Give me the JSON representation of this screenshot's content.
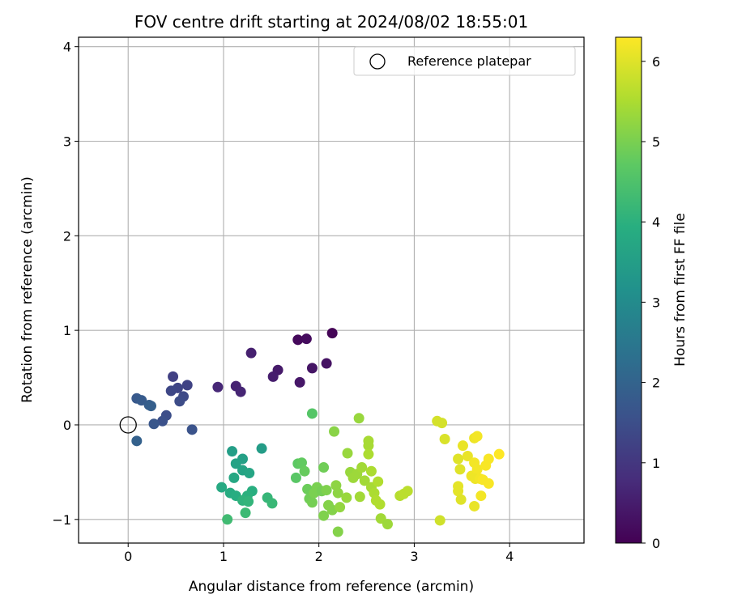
{
  "chart_data": {
    "type": "scatter",
    "title": "FOV centre drift starting at 2024/08/02 18:55:01",
    "xlabel": "Angular distance from reference (arcmin)",
    "ylabel": "Rotation from reference (arcmin)",
    "xlim": [
      -0.52,
      4.78
    ],
    "ylim": [
      -1.25,
      4.1
    ],
    "xticks": [
      "0",
      "1",
      "2",
      "3",
      "4"
    ],
    "xtick_values": [
      0,
      1,
      2,
      3,
      4
    ],
    "yticks": [
      "−1",
      "0",
      "1",
      "2",
      "3",
      "4"
    ],
    "ytick_values": [
      -1,
      0,
      1,
      2,
      3,
      4
    ],
    "grid": true,
    "legend": {
      "position": "top-right",
      "entries": [
        "Reference platepar"
      ]
    },
    "reference_point": {
      "x": 0,
      "y": 0,
      "label": "Reference platepar"
    },
    "colorbar": {
      "label": "Hours from first FF file",
      "range": [
        0,
        6.3
      ],
      "ticks": [
        "0",
        "1",
        "2",
        "3",
        "4",
        "5",
        "6"
      ],
      "tick_values": [
        0,
        1,
        2,
        3,
        4,
        5,
        6
      ],
      "colormap": "viridis"
    },
    "points": [
      [
        2.14,
        0.97,
        0.05
      ],
      [
        1.78,
        0.9,
        0.15
      ],
      [
        1.87,
        0.91,
        0.2
      ],
      [
        2.08,
        0.65,
        0.3
      ],
      [
        1.93,
        0.6,
        0.35
      ],
      [
        1.8,
        0.45,
        0.4
      ],
      [
        1.57,
        0.58,
        0.45
      ],
      [
        1.52,
        0.51,
        0.5
      ],
      [
        1.29,
        0.76,
        0.55
      ],
      [
        1.13,
        0.41,
        0.6
      ],
      [
        1.18,
        0.35,
        0.65
      ],
      [
        0.94,
        0.4,
        0.7
      ],
      [
        0.47,
        0.51,
        1.2
      ],
      [
        0.62,
        0.42,
        1.25
      ],
      [
        0.52,
        0.39,
        1.3
      ],
      [
        0.45,
        0.36,
        1.35
      ],
      [
        0.58,
        0.3,
        1.4
      ],
      [
        0.54,
        0.25,
        1.45
      ],
      [
        0.4,
        0.1,
        1.5
      ],
      [
        0.36,
        0.04,
        1.55
      ],
      [
        0.67,
        -0.05,
        1.6
      ],
      [
        0.27,
        0.01,
        1.7
      ],
      [
        0.09,
        0.28,
        1.75
      ],
      [
        0.14,
        0.26,
        1.8
      ],
      [
        0.22,
        0.21,
        1.85
      ],
      [
        0.24,
        0.2,
        1.9
      ],
      [
        0.09,
        -0.17,
        1.95
      ],
      [
        1.4,
        -0.25,
        3.45
      ],
      [
        1.09,
        -0.28,
        3.5
      ],
      [
        1.2,
        -0.36,
        3.55
      ],
      [
        1.13,
        -0.41,
        3.6
      ],
      [
        1.2,
        -0.48,
        3.65
      ],
      [
        1.27,
        -0.51,
        3.7
      ],
      [
        1.11,
        -0.56,
        3.75
      ],
      [
        0.98,
        -0.66,
        3.8
      ],
      [
        1.07,
        -0.72,
        3.85
      ],
      [
        1.13,
        -0.75,
        3.9
      ],
      [
        1.3,
        -0.7,
        3.95
      ],
      [
        1.25,
        -0.75,
        4.0
      ],
      [
        1.2,
        -0.8,
        4.05
      ],
      [
        1.26,
        -0.81,
        4.1
      ],
      [
        1.46,
        -0.77,
        4.15
      ],
      [
        1.51,
        -0.83,
        4.2
      ],
      [
        1.23,
        -0.93,
        4.25
      ],
      [
        1.04,
        -1.0,
        4.3
      ],
      [
        1.93,
        0.12,
        4.6
      ],
      [
        1.76,
        -0.56,
        4.65
      ],
      [
        1.78,
        -0.41,
        4.7
      ],
      [
        1.82,
        -0.4,
        4.75
      ],
      [
        1.85,
        -0.49,
        4.8
      ],
      [
        1.88,
        -0.68,
        4.85
      ],
      [
        1.9,
        -0.78,
        4.9
      ],
      [
        1.93,
        -0.82,
        4.95
      ],
      [
        1.95,
        -0.72,
        5.0
      ],
      [
        1.98,
        -0.66,
        5.0
      ],
      [
        2.03,
        -0.7,
        4.95
      ],
      [
        2.05,
        -0.45,
        4.9
      ],
      [
        2.08,
        -0.69,
        5.05
      ],
      [
        2.1,
        -0.85,
        5.1
      ],
      [
        2.05,
        -0.96,
        5.05
      ],
      [
        2.14,
        -0.9,
        5.1
      ],
      [
        2.16,
        -0.07,
        5.15
      ],
      [
        2.18,
        -0.64,
        5.2
      ],
      [
        2.2,
        -0.72,
        5.2
      ],
      [
        2.22,
        -0.87,
        5.25
      ],
      [
        2.2,
        -1.13,
        5.1
      ],
      [
        2.3,
        -0.3,
        5.3
      ],
      [
        2.33,
        -0.5,
        5.3
      ],
      [
        2.36,
        -0.56,
        5.35
      ],
      [
        2.4,
        -0.52,
        5.35
      ],
      [
        2.42,
        0.07,
        5.3
      ],
      [
        2.45,
        -0.45,
        5.4
      ],
      [
        2.48,
        -0.59,
        5.4
      ],
      [
        2.52,
        -0.17,
        5.45
      ],
      [
        2.52,
        -0.22,
        5.45
      ],
      [
        2.52,
        -0.31,
        5.5
      ],
      [
        2.55,
        -0.49,
        5.5
      ],
      [
        2.55,
        -0.66,
        5.45
      ],
      [
        2.58,
        -0.72,
        5.5
      ],
      [
        2.6,
        -0.8,
        5.55
      ],
      [
        2.62,
        -0.6,
        5.55
      ],
      [
        2.64,
        -0.84,
        5.55
      ],
      [
        2.65,
        -0.99,
        5.4
      ],
      [
        2.72,
        -1.05,
        5.35
      ],
      [
        2.85,
        -0.75,
        5.6
      ],
      [
        2.89,
        -0.73,
        5.65
      ],
      [
        2.93,
        -0.7,
        5.65
      ],
      [
        2.43,
        -0.76,
        5.4
      ],
      [
        2.29,
        -0.77,
        5.3
      ],
      [
        3.24,
        0.04,
        5.9
      ],
      [
        3.29,
        0.02,
        5.9
      ],
      [
        3.32,
        -0.15,
        5.95
      ],
      [
        3.27,
        -1.01,
        5.85
      ],
      [
        3.46,
        -0.36,
        6.0
      ],
      [
        3.48,
        -0.47,
        6.0
      ],
      [
        3.46,
        -0.65,
        6.05
      ],
      [
        3.46,
        -0.7,
        6.05
      ],
      [
        3.49,
        -0.79,
        6.0
      ],
      [
        3.51,
        -0.22,
        6.1
      ],
      [
        3.56,
        -0.33,
        6.1
      ],
      [
        3.6,
        -0.54,
        6.15
      ],
      [
        3.63,
        -0.14,
        6.15
      ],
      [
        3.66,
        -0.12,
        6.2
      ],
      [
        3.63,
        -0.4,
        6.2
      ],
      [
        3.66,
        -0.47,
        6.2
      ],
      [
        3.64,
        -0.57,
        6.15
      ],
      [
        3.63,
        -0.86,
        6.1
      ],
      [
        3.69,
        -0.57,
        6.2
      ],
      [
        3.7,
        -0.75,
        6.2
      ],
      [
        3.72,
        -0.58,
        6.25
      ],
      [
        3.75,
        -0.43,
        6.25
      ],
      [
        3.78,
        -0.36,
        6.25
      ],
      [
        3.78,
        -0.62,
        6.25
      ],
      [
        3.89,
        -0.31,
        6.3
      ]
    ]
  }
}
